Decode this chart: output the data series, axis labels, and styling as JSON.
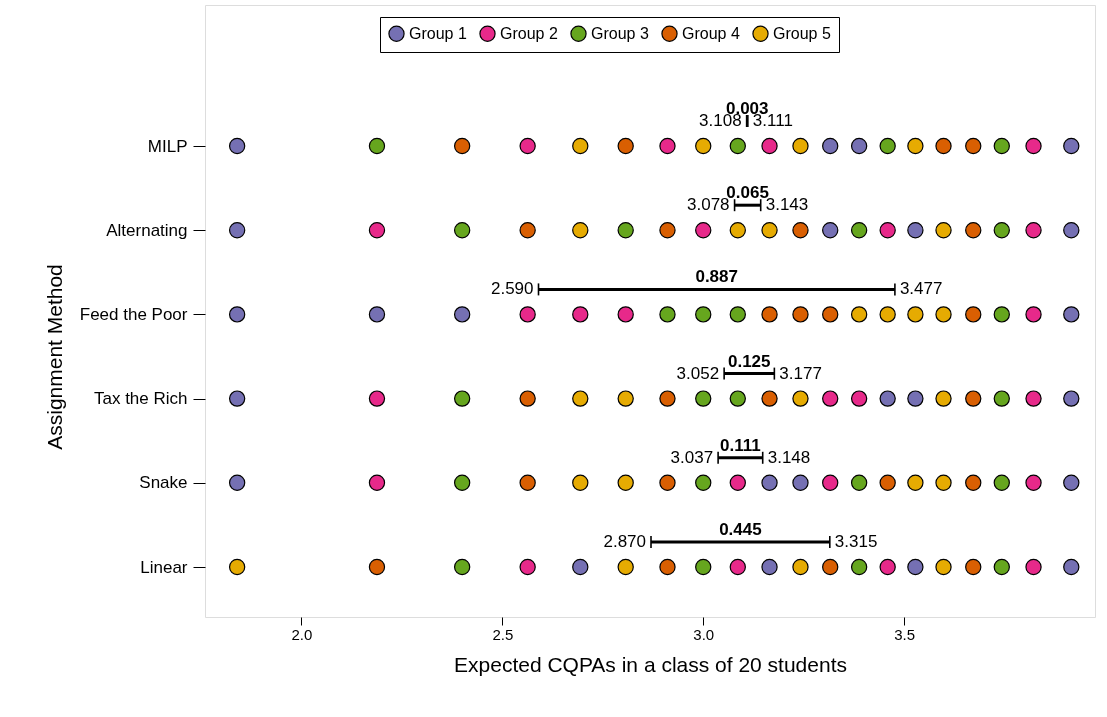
{
  "chart_data": {
    "type": "scatter",
    "orientation": "horizontal",
    "xlabel": "Expected CQPAs in a class of 20 students",
    "ylabel": "Assignment Method",
    "categories": [
      "MILP",
      "Alternating",
      "Feed the Poor",
      "Tax the Rich",
      "Snake",
      "Linear"
    ],
    "xlim": [
      1.76,
      3.975
    ],
    "xticks": [
      {
        "value": 2.0,
        "label": "2.0"
      },
      {
        "value": 2.5,
        "label": "2.5"
      },
      {
        "value": 3.0,
        "label": "3.0"
      },
      {
        "value": 3.5,
        "label": "3.5"
      }
    ],
    "grid": false,
    "legend": "top",
    "marker": "circle",
    "series": [
      {
        "name": "Group 1",
        "color": "#7570b3",
        "values": [
          1.84,
          1.84,
          1.84,
          1.84,
          1.84,
          2.694
        ]
      },
      {
        "color": "#7570b3",
        "values": [
          3.316,
          3.316,
          2.188,
          3.459,
          3.165,
          3.165
        ]
      },
      {
        "color": "#7570b3",
        "values": [
          3.388,
          3.528,
          2.4,
          3.528,
          3.242,
          3.528
        ]
      },
      {
        "color": "#7570b3",
        "values": [
          3.916,
          3.916,
          3.916,
          3.916,
          3.916,
          3.916
        ]
      },
      {
        "name": "Group 2",
        "color": "#e7298a",
        "values": [
          2.563,
          2.188,
          2.563,
          2.188,
          2.188,
          2.563
        ]
      },
      {
        "color": "#e7298a",
        "values": [
          2.911,
          3.0,
          2.694,
          3.316,
          3.086,
          3.086
        ]
      },
      {
        "color": "#e7298a",
        "values": [
          3.165,
          3.459,
          2.807,
          3.388,
          3.316,
          3.459
        ]
      },
      {
        "color": "#e7298a",
        "values": [
          3.822,
          3.822,
          3.822,
          3.822,
          3.822,
          3.822
        ]
      },
      {
        "name": "Group 3",
        "color": "#66a61e",
        "values": [
          2.188,
          2.4,
          2.911,
          2.4,
          2.4,
          2.4
        ]
      },
      {
        "color": "#66a61e",
        "values": [
          3.086,
          2.807,
          3.0,
          3.0,
          3.0,
          3.0
        ]
      },
      {
        "color": "#66a61e",
        "values": [
          3.459,
          3.388,
          3.086,
          3.086,
          3.388,
          3.388
        ]
      },
      {
        "color": "#66a61e",
        "values": [
          3.743,
          3.743,
          3.743,
          3.743,
          3.743,
          3.743
        ]
      },
      {
        "name": "Group 4",
        "color": "#d95f02",
        "values": [
          2.4,
          2.563,
          3.165,
          2.563,
          2.563,
          2.188
        ]
      },
      {
        "color": "#d95f02",
        "values": [
          2.807,
          2.911,
          3.242,
          2.911,
          2.911,
          2.911
        ]
      },
      {
        "color": "#d95f02",
        "values": [
          3.598,
          3.242,
          3.316,
          3.165,
          3.459,
          3.316
        ]
      },
      {
        "color": "#d95f02",
        "values": [
          3.672,
          3.672,
          3.672,
          3.672,
          3.672,
          3.672
        ]
      },
      {
        "name": "Group 5",
        "color": "#e6ab02",
        "values": [
          2.694,
          2.694,
          3.388,
          2.694,
          2.694,
          1.84
        ]
      },
      {
        "color": "#e6ab02",
        "values": [
          3.0,
          3.086,
          3.459,
          2.807,
          2.807,
          2.807
        ]
      },
      {
        "color": "#e6ab02",
        "values": [
          3.242,
          3.165,
          3.528,
          3.242,
          3.528,
          3.242
        ]
      },
      {
        "color": "#e6ab02",
        "values": [
          3.528,
          3.598,
          3.598,
          3.598,
          3.598,
          3.598
        ]
      },
      {
        "type": "bar",
        "color": "#000000",
        "base": [
          3.108,
          3.078,
          2.59,
          3.052,
          3.037,
          2.87
        ],
        "values": [
          0.003,
          0.065,
          0.887,
          0.125,
          0.111,
          0.445
        ],
        "value_labels": [
          "0.003",
          "0.065",
          "0.887",
          "0.125",
          "0.111",
          "0.445"
        ]
      }
    ],
    "annotations": [
      "3.108",
      "3.111",
      "3.078",
      "3.143",
      "2.590",
      "3.477",
      "3.052",
      "3.177",
      "3.037",
      "3.148",
      "2.870",
      "3.315"
    ]
  }
}
